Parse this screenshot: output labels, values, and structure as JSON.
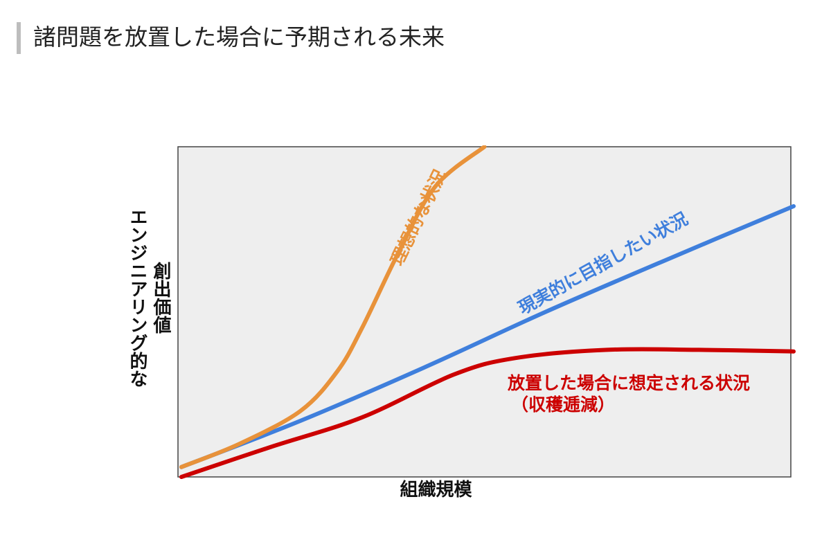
{
  "page": {
    "title": "諸問題を放置した場合に予期される未来"
  },
  "colors": {
    "plot_bg": "#eeeeee",
    "plot_border": "#444444",
    "ideal": "#e8923a",
    "realistic": "#3f7fdc",
    "neglect": "#cc0000"
  },
  "chart_data": {
    "type": "line",
    "xlabel": "組織規模",
    "ylabel": [
      "エンジニアリング的な",
      "創出価値"
    ],
    "xlim": [
      0,
      1
    ],
    "ylim": [
      0,
      1
    ],
    "grid": false,
    "legend": "none",
    "series": [
      {
        "key": "ideal",
        "name": "理想的な状況",
        "color": "#e8923a",
        "x": [
          0.0,
          0.1,
          0.2,
          0.26,
          0.3,
          0.36,
          0.42,
          0.5
        ],
        "y": [
          0.03,
          0.1,
          0.2,
          0.32,
          0.45,
          0.68,
          0.88,
          1.0
        ]
      },
      {
        "key": "realistic",
        "name": "現実的に目指したい状況",
        "color": "#3f7fdc",
        "x": [
          0.0,
          0.2,
          0.4,
          0.6,
          0.8,
          1.0
        ],
        "y": [
          0.03,
          0.17,
          0.33,
          0.5,
          0.66,
          0.82
        ]
      },
      {
        "key": "neglect",
        "name": "放置した場合に想定される状況",
        "subname": "（収穫逓減）",
        "color": "#cc0000",
        "x": [
          0.0,
          0.15,
          0.3,
          0.45,
          0.55,
          0.7,
          0.85,
          1.0
        ],
        "y": [
          0.0,
          0.09,
          0.18,
          0.31,
          0.36,
          0.385,
          0.385,
          0.38
        ]
      }
    ]
  }
}
